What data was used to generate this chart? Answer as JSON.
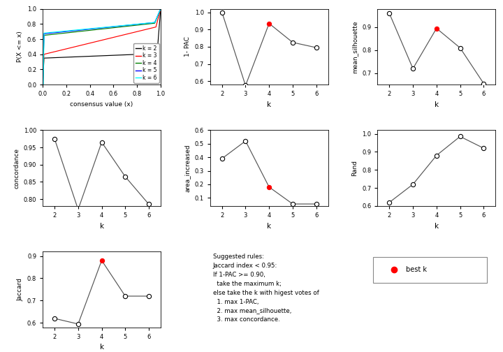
{
  "ecdf_colors": [
    "black",
    "red",
    "green",
    "blue",
    "cyan"
  ],
  "ecdf_labels": [
    "k = 2",
    "k = 3",
    "k = 4",
    "k = 5",
    "k = 6"
  ],
  "one_pac_k": [
    2,
    3,
    4,
    5,
    6
  ],
  "one_pac_v": [
    1.0,
    0.575,
    0.935,
    0.825,
    0.795
  ],
  "one_pac_best": 4,
  "one_pac_ylim": [
    0.58,
    1.02
  ],
  "one_pac_ylabel": "1- PAC",
  "sil_k": [
    2,
    3,
    4,
    5,
    6
  ],
  "sil_v": [
    0.96,
    0.72,
    0.895,
    0.81,
    0.655
  ],
  "sil_best": 4,
  "sil_ylim": [
    0.65,
    0.98
  ],
  "sil_ylabel": "mean_silhouette",
  "conc_k": [
    2,
    3,
    4,
    5,
    6
  ],
  "conc_v": [
    0.975,
    0.77,
    0.965,
    0.865,
    0.785
  ],
  "conc_best": -1,
  "conc_ylim": [
    0.78,
    1.0
  ],
  "conc_ylabel": "concordance",
  "area_k": [
    2,
    3,
    4,
    5,
    6
  ],
  "area_v": [
    0.39,
    0.52,
    0.18,
    0.055,
    0.055
  ],
  "area_best": 4,
  "area_ylim": [
    0.04,
    0.6
  ],
  "area_ylabel": "area_increased",
  "rand_k": [
    2,
    3,
    4,
    5,
    6
  ],
  "rand_v": [
    0.62,
    0.72,
    0.88,
    0.985,
    0.92
  ],
  "rand_best": -1,
  "rand_ylim": [
    0.6,
    1.02
  ],
  "rand_ylabel": "Rand",
  "jacc_k": [
    2,
    3,
    4,
    5,
    6
  ],
  "jacc_v": [
    0.62,
    0.595,
    0.88,
    0.72,
    0.72
  ],
  "jacc_best": 4,
  "jacc_ylim": [
    0.58,
    0.92
  ],
  "jacc_ylabel": "Jaccard",
  "xlabel": "k",
  "open_fc": "white",
  "open_ec": "black",
  "best_color": "red",
  "line_color": "#555555",
  "bg_color": "white",
  "text_line1": "Suggested rules:",
  "text_line2": "Jaccard index < 0.95:",
  "text_line3": "If 1-PAC >= 0.90,",
  "text_line4": "  take the maximum k;",
  "text_line5": "else take the k with higest votes of",
  "text_line6": "  1. max 1-PAC,",
  "text_line7": "  2. max mean_silhouette,",
  "text_line8": "  3. max concordance."
}
